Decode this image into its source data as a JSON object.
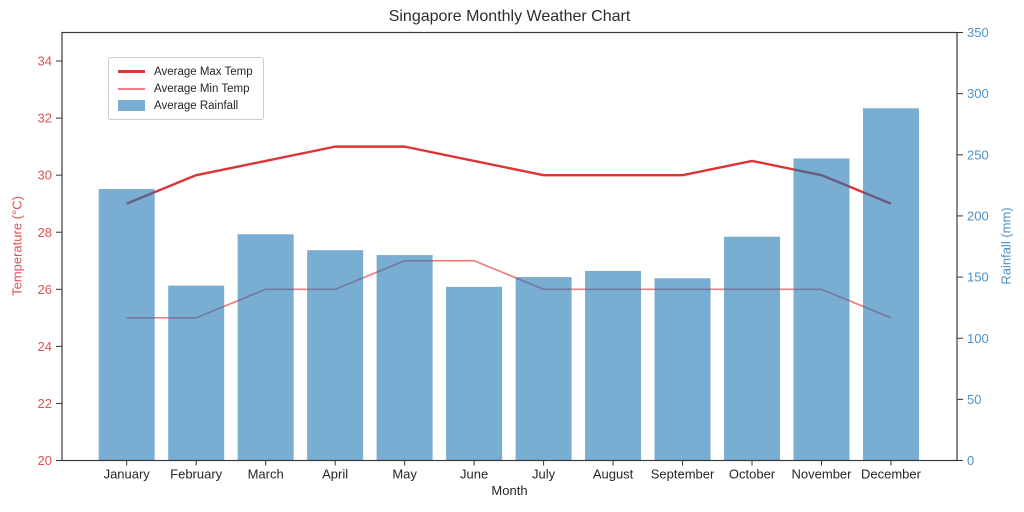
{
  "title": "Singapore Monthly Weather Chart",
  "axes": {
    "x_label": "Month",
    "left_label": "Temperature (°C)",
    "right_label": "Rainfall (mm)"
  },
  "legend": {
    "items": [
      {
        "label": "Average Max Temp",
        "swatch": "line-max"
      },
      {
        "label": "Average Min Temp",
        "swatch": "line-min"
      },
      {
        "label": "Average Rainfall",
        "swatch": "patch"
      }
    ],
    "position": "upper left"
  },
  "colors": {
    "max_temp_line": "#dc3535",
    "min_temp_line": "#f08080",
    "rainfall_bar_rgba": "rgba(31,119,180,0.6)",
    "rainfall_bar_solid": "#79add2",
    "temp_axis_text": "#e05252",
    "rain_axis_text": "#4d92c6",
    "spine": "#3a3a3a",
    "tick": "#333333",
    "x_tick_text": "#262626"
  },
  "chart_data": {
    "type": "bar+line (dual axis)",
    "title": "Singapore Monthly Weather Chart",
    "xlabel": "Month",
    "categories": [
      "January",
      "February",
      "March",
      "April",
      "May",
      "June",
      "July",
      "August",
      "September",
      "October",
      "November",
      "December"
    ],
    "series": [
      {
        "name": "Average Max Temp",
        "type": "line",
        "axis": "left",
        "values": [
          29,
          30,
          30.5,
          31,
          31,
          30.5,
          30,
          30,
          30,
          30.5,
          30,
          29
        ]
      },
      {
        "name": "Average Min Temp",
        "type": "line",
        "axis": "left",
        "values": [
          25,
          25,
          26,
          26,
          27,
          27,
          26,
          26,
          26,
          26,
          26,
          25
        ]
      },
      {
        "name": "Average Rainfall",
        "type": "bar",
        "axis": "right",
        "values": [
          222,
          143,
          185,
          172,
          168,
          142,
          150,
          155,
          149,
          183,
          247,
          288
        ]
      }
    ],
    "left_axis": {
      "label": "Temperature (°C)",
      "min": 20,
      "max": 35,
      "ticks": [
        20,
        22,
        24,
        26,
        28,
        30,
        32,
        34
      ]
    },
    "right_axis": {
      "label": "Rainfall (mm)",
      "min": 0,
      "max": 350,
      "ticks": [
        0,
        50,
        100,
        150,
        200,
        250,
        300,
        350
      ]
    },
    "grid": false,
    "legend_position": "upper left"
  }
}
